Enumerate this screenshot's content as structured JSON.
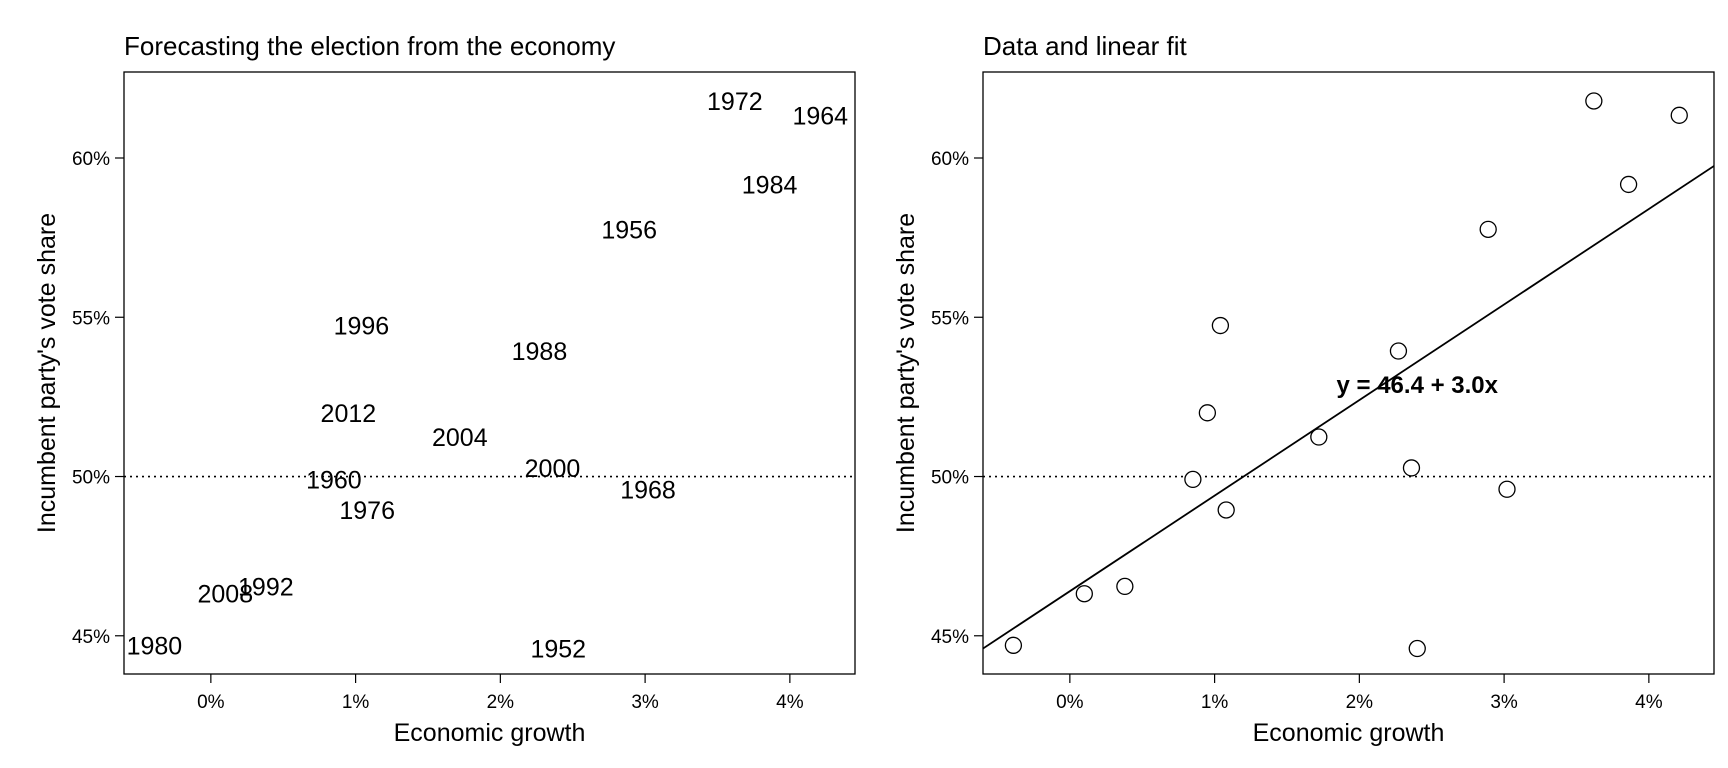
{
  "chart_data": [
    {
      "type": "scatter",
      "marker": "text",
      "title": "Forecasting the election from the economy",
      "xlabel": "Economic growth",
      "ylabel": "Incumbent party's vote share",
      "xlim": [
        -0.6,
        4.45
      ],
      "ylim": [
        43.8,
        62.7
      ],
      "xticks": [
        0,
        1,
        2,
        3,
        4
      ],
      "xtick_labels": [
        "0%",
        "1%",
        "2%",
        "3%",
        "4%"
      ],
      "yticks": [
        45,
        50,
        55,
        60
      ],
      "ytick_labels": [
        "45%",
        "50%",
        "55%",
        "60%"
      ],
      "reference_line": {
        "y": 50,
        "style": "dotted"
      },
      "points": [
        {
          "label": "1952",
          "x": 2.4,
          "y": 44.6
        },
        {
          "label": "1956",
          "x": 2.89,
          "y": 57.76
        },
        {
          "label": "1960",
          "x": 0.85,
          "y": 49.91
        },
        {
          "label": "1964",
          "x": 4.21,
          "y": 61.34
        },
        {
          "label": "1968",
          "x": 3.02,
          "y": 49.6
        },
        {
          "label": "1972",
          "x": 3.62,
          "y": 61.79
        },
        {
          "label": "1976",
          "x": 1.08,
          "y": 48.95
        },
        {
          "label": "1980",
          "x": -0.39,
          "y": 44.7
        },
        {
          "label": "1984",
          "x": 3.86,
          "y": 59.17
        },
        {
          "label": "1988",
          "x": 2.27,
          "y": 53.94
        },
        {
          "label": "1992",
          "x": 0.38,
          "y": 46.55
        },
        {
          "label": "1996",
          "x": 1.04,
          "y": 54.74
        },
        {
          "label": "2000",
          "x": 2.36,
          "y": 50.27
        },
        {
          "label": "2004",
          "x": 1.72,
          "y": 51.24
        },
        {
          "label": "2008",
          "x": 0.1,
          "y": 46.32
        },
        {
          "label": "2012",
          "x": 0.95,
          "y": 52.0
        }
      ]
    },
    {
      "type": "scatter",
      "marker": "open-circle",
      "title": "Data and linear fit",
      "xlabel": "Economic growth",
      "ylabel": "Incumbent party's vote share",
      "xlim": [
        -0.6,
        4.45
      ],
      "ylim": [
        43.8,
        62.7
      ],
      "xticks": [
        0,
        1,
        2,
        3,
        4
      ],
      "xtick_labels": [
        "0%",
        "1%",
        "2%",
        "3%",
        "4%"
      ],
      "yticks": [
        45,
        50,
        55,
        60
      ],
      "ytick_labels": [
        "45%",
        "50%",
        "55%",
        "60%"
      ],
      "reference_line": {
        "y": 50,
        "style": "dotted"
      },
      "fit": {
        "intercept": 46.4,
        "slope": 3.0,
        "label": "y = 46.4 + 3.0x",
        "label_x": 2.4,
        "label_y": 52.9
      },
      "points": [
        {
          "x": 2.4,
          "y": 44.6
        },
        {
          "x": 2.89,
          "y": 57.76
        },
        {
          "x": 0.85,
          "y": 49.91
        },
        {
          "x": 4.21,
          "y": 61.34
        },
        {
          "x": 3.02,
          "y": 49.6
        },
        {
          "x": 3.62,
          "y": 61.79
        },
        {
          "x": 1.08,
          "y": 48.95
        },
        {
          "x": -0.39,
          "y": 44.7
        },
        {
          "x": 3.86,
          "y": 59.17
        },
        {
          "x": 2.27,
          "y": 53.94
        },
        {
          "x": 0.38,
          "y": 46.55
        },
        {
          "x": 1.04,
          "y": 54.74
        },
        {
          "x": 2.36,
          "y": 50.27
        },
        {
          "x": 1.72,
          "y": 51.24
        },
        {
          "x": 0.1,
          "y": 46.32
        },
        {
          "x": 0.95,
          "y": 52.0
        }
      ]
    }
  ]
}
